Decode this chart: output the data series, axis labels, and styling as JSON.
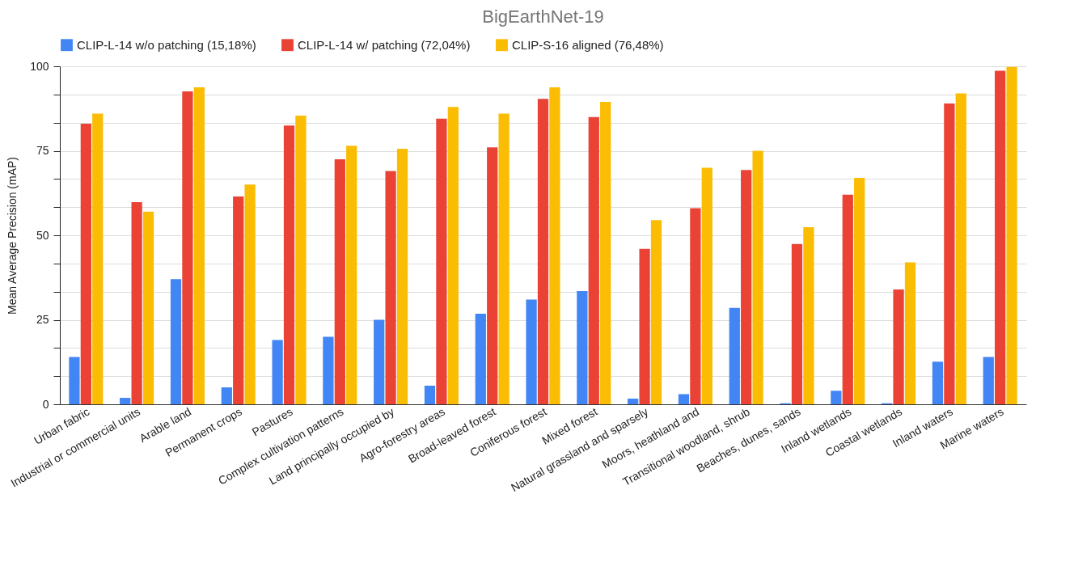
{
  "chart_data": {
    "type": "bar",
    "title": "BigEarthNet-19",
    "ylabel": "Mean Average Precision (mAP)",
    "categories": [
      "Urban fabric",
      "Industrial or commercial units",
      "Arable land",
      "Permanent crops",
      "Pastures",
      "Complex cultivation patterns",
      "Land principally occupied by",
      "Agro-forestry areas",
      "Broad-leaved forest",
      "Coniferous forest",
      "Mixed forest",
      "Natural grassland and sparsely",
      "Moors, heathland and",
      "Transitional woodland, shrub",
      "Beaches, dunes, sands",
      "Inland wetlands",
      "Coastal wetlands",
      "Inland waters",
      "Marine waters"
    ],
    "series": [
      {
        "name": "CLIP-L-14 w/o patching (15,18%)",
        "color": "#4285f4",
        "values": [
          14,
          1.9,
          37,
          5,
          19,
          20,
          25,
          5.5,
          26.8,
          31,
          33.5,
          1.7,
          3,
          28.5,
          0.3,
          4,
          0.3,
          12.6,
          14
        ]
      },
      {
        "name": "CLIP-L-14 w/ patching (72,04%)",
        "color": "#ea4335",
        "values": [
          83,
          59.8,
          92.6,
          61.5,
          82.5,
          72.5,
          69,
          84.5,
          76,
          90.4,
          85,
          46,
          58,
          69.3,
          47.4,
          62,
          34,
          89,
          98.7
        ]
      },
      {
        "name": "CLIP-S-16 aligned (76,48%)",
        "color": "#fbbc04",
        "values": [
          86,
          57,
          93.8,
          65,
          85.4,
          76.5,
          75.6,
          88,
          86,
          93.8,
          89.5,
          54.5,
          70,
          75,
          52.4,
          67,
          42,
          92,
          99.8
        ]
      }
    ],
    "ylim": [
      0,
      100
    ],
    "yticks": [
      0,
      {
        "value": 8.333,
        "label": null
      },
      {
        "value": 16.667,
        "label": null
      },
      25,
      {
        "value": 33.333,
        "label": null
      },
      {
        "value": 41.667,
        "label": null
      },
      50,
      {
        "value": 58.333,
        "label": null
      },
      {
        "value": 66.667,
        "label": null
      },
      75,
      {
        "value": 83.333,
        "label": null
      },
      {
        "value": 91.667,
        "label": null
      },
      100
    ],
    "grid": "y",
    "legend": "top"
  }
}
